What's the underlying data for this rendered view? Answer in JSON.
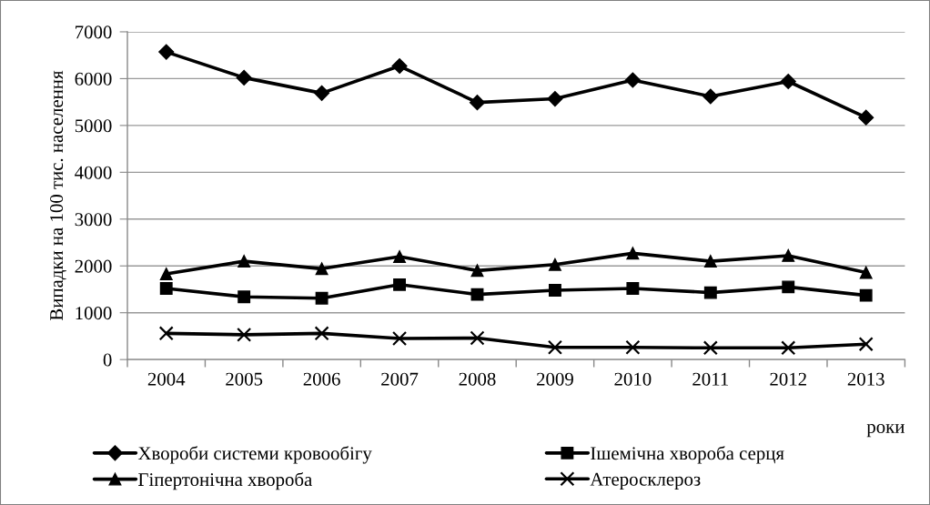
{
  "chart_data": {
    "type": "line",
    "ylabel": "Випадки на 100 тис. населення",
    "xlabel": "роки",
    "categories": [
      "2004",
      "2005",
      "2006",
      "2007",
      "2008",
      "2009",
      "2010",
      "2011",
      "2012",
      "2013"
    ],
    "ylim": [
      0,
      7000
    ],
    "yticks": [
      0,
      1000,
      2000,
      3000,
      4000,
      5000,
      6000,
      7000
    ],
    "grid": "y",
    "legend": "bottom",
    "line_style": "solid",
    "series": [
      {
        "name": "Хвороби системи кровообігу",
        "color": "#000000",
        "marker": "diamond",
        "values": [
          6570,
          6020,
          5690,
          6270,
          5490,
          5570,
          5970,
          5620,
          5940,
          5170
        ]
      },
      {
        "name": "Ішемічна хвороба серця",
        "color": "#000000",
        "marker": "square",
        "values": [
          1520,
          1340,
          1310,
          1600,
          1390,
          1480,
          1520,
          1430,
          1550,
          1370
        ]
      },
      {
        "name": "Гіпертонічна хвороба",
        "color": "#000000",
        "marker": "triangle",
        "values": [
          1830,
          2100,
          1940,
          2200,
          1900,
          2030,
          2270,
          2100,
          2220,
          1860
        ]
      },
      {
        "name": "Атеросклероз",
        "color": "#000000",
        "marker": "cross",
        "values": [
          560,
          530,
          560,
          450,
          460,
          260,
          260,
          250,
          250,
          330
        ]
      }
    ]
  }
}
